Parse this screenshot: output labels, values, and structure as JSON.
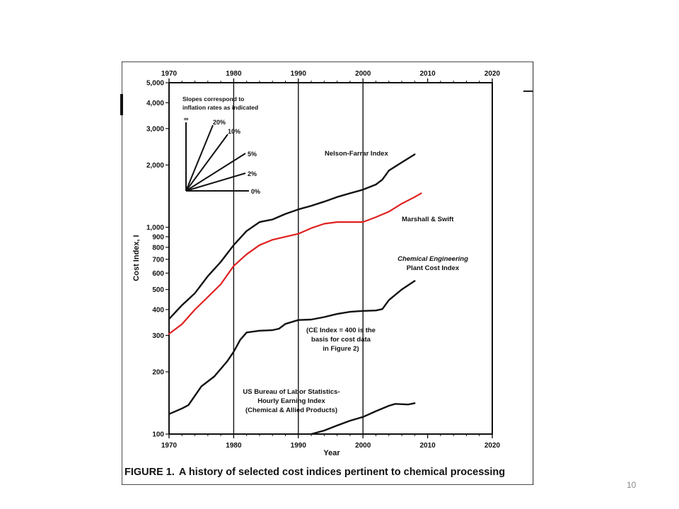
{
  "slide_number": "10",
  "caption": {
    "label": "FIGURE 1.",
    "text": "A history of selected cost indices pertinent to chemical processing"
  },
  "chart_data": {
    "type": "line",
    "xlabel": "Year",
    "ylabel": "Cost Index, I",
    "xlim": [
      1970,
      2020
    ],
    "ylim": [
      100,
      5000
    ],
    "y_scale": "log",
    "x_ticks": [
      "1970",
      "1980",
      "1990",
      "2000",
      "2010",
      "2020"
    ],
    "y_ticks": [
      {
        "value": 100,
        "label": "100"
      },
      {
        "value": 200,
        "label": "200"
      },
      {
        "value": 300,
        "label": "300"
      },
      {
        "value": 400,
        "label": "400"
      },
      {
        "value": 500,
        "label": "500"
      },
      {
        "value": 600,
        "label": "600"
      },
      {
        "value": 700,
        "label": "700"
      },
      {
        "value": 800,
        "label": "800"
      },
      {
        "value": 900,
        "label": "900"
      },
      {
        "value": 1000,
        "label": "1,000"
      },
      {
        "value": 2000,
        "label": "2,000"
      },
      {
        "value": 3000,
        "label": "3,000"
      },
      {
        "value": 4000,
        "label": "4,000"
      },
      {
        "value": 5000,
        "label": "5,000"
      }
    ],
    "vertical_gridlines_at": [
      1980,
      1990,
      2000
    ],
    "series": [
      {
        "name": "Nelson-Farrar Index",
        "color": "#111111",
        "points": [
          [
            1970,
            360
          ],
          [
            1972,
            420
          ],
          [
            1974,
            480
          ],
          [
            1976,
            580
          ],
          [
            1978,
            680
          ],
          [
            1980,
            820
          ],
          [
            1982,
            960
          ],
          [
            1984,
            1060
          ],
          [
            1986,
            1090
          ],
          [
            1988,
            1160
          ],
          [
            1990,
            1220
          ],
          [
            1992,
            1270
          ],
          [
            1994,
            1330
          ],
          [
            1996,
            1400
          ],
          [
            1998,
            1460
          ],
          [
            2000,
            1520
          ],
          [
            2002,
            1610
          ],
          [
            2003,
            1700
          ],
          [
            2004,
            1880
          ],
          [
            2006,
            2060
          ],
          [
            2008,
            2250
          ]
        ]
      },
      {
        "name": "Marshall & Swift",
        "color": "#e02020",
        "points": [
          [
            1970,
            305
          ],
          [
            1972,
            340
          ],
          [
            1974,
            400
          ],
          [
            1976,
            460
          ],
          [
            1978,
            530
          ],
          [
            1980,
            650
          ],
          [
            1982,
            740
          ],
          [
            1984,
            820
          ],
          [
            1986,
            870
          ],
          [
            1988,
            900
          ],
          [
            1990,
            930
          ],
          [
            1992,
            990
          ],
          [
            1994,
            1040
          ],
          [
            1996,
            1060
          ],
          [
            1998,
            1060
          ],
          [
            2000,
            1060
          ],
          [
            2002,
            1120
          ],
          [
            2004,
            1190
          ],
          [
            2006,
            1300
          ],
          [
            2008,
            1400
          ],
          [
            2009,
            1460
          ]
        ]
      },
      {
        "name": "Chemical Engineering Plant Cost Index",
        "color": "#111111",
        "points": [
          [
            1970,
            125
          ],
          [
            1972,
            133
          ],
          [
            1973,
            138
          ],
          [
            1975,
            170
          ],
          [
            1977,
            190
          ],
          [
            1979,
            225
          ],
          [
            1980,
            250
          ],
          [
            1981,
            285
          ],
          [
            1982,
            310
          ],
          [
            1984,
            316
          ],
          [
            1986,
            318
          ],
          [
            1987,
            323
          ],
          [
            1988,
            341
          ],
          [
            1990,
            356
          ],
          [
            1992,
            358
          ],
          [
            1994,
            368
          ],
          [
            1996,
            381
          ],
          [
            1998,
            390
          ],
          [
            2000,
            394
          ],
          [
            2002,
            396
          ],
          [
            2003,
            402
          ],
          [
            2004,
            444
          ],
          [
            2006,
            500
          ],
          [
            2008,
            550
          ]
        ]
      },
      {
        "name": "US Bureau of Labor Statistics-Hourly Earning Index (Chemical & Allied Products)",
        "color": "#111111",
        "points": [
          [
            1992,
            100
          ],
          [
            1994,
            104
          ],
          [
            1996,
            110
          ],
          [
            1998,
            116
          ],
          [
            2000,
            121
          ],
          [
            2002,
            129
          ],
          [
            2004,
            137
          ],
          [
            2005,
            140
          ],
          [
            2007,
            139
          ],
          [
            2008,
            141
          ]
        ]
      }
    ],
    "annotations": {
      "nelson": "Nelson-Farrar Index",
      "marshall": "Marshall & Swift",
      "ce_line1": "Chemical Engineering",
      "ce_line2": "Plant Cost Index",
      "ce_note_line1": "(CE Index = 400 is the",
      "ce_note_line2": "basis for cost data",
      "ce_note_line3": "in Figure 2)",
      "bls_line1": "US Bureau of Labor Statistics-",
      "bls_line2": "Hourly Earning Index",
      "bls_line3": "(Chemical & Allied Products)"
    },
    "slopes_inset": {
      "title_line1": "Slopes correspond to",
      "title_line2": "inflation rates as indicated",
      "labels": [
        "∞",
        "20%",
        "10%",
        "5%",
        "2%",
        "0%"
      ]
    }
  }
}
